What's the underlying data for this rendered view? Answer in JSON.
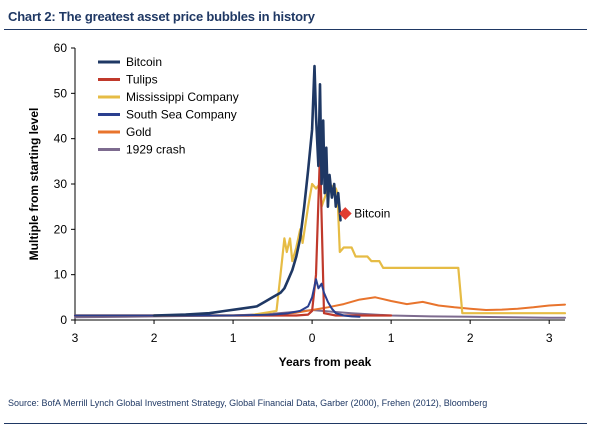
{
  "title": "Chart 2: The greatest asset price bubbles in history",
  "source": "Source:  BofA Merrill Lynch Global Investment Strategy, Global Financial Data, Garber (2000), Frehen (2012),  Bloomberg",
  "chart_data": {
    "type": "line",
    "xlabel": "Years from peak",
    "ylabel": "Multiple from starting level",
    "xlim": [
      -3,
      3.2
    ],
    "ylim": [
      0,
      60
    ],
    "xticks": [
      -3,
      -2,
      -1,
      0,
      1,
      2,
      3
    ],
    "xtick_labels": [
      "3",
      "2",
      "1",
      "0",
      "1",
      "2",
      "3"
    ],
    "yticks": [
      0,
      10,
      20,
      30,
      40,
      50,
      60
    ],
    "ytick_labels": [
      "0",
      "10",
      "20",
      "30",
      "40",
      "50",
      "60"
    ],
    "legend_position": "top-left",
    "annotation": {
      "text": "Bitcoin",
      "x": 0.42,
      "y": 23.5,
      "color": "#e03c31"
    },
    "series": [
      {
        "name": "Bitcoin",
        "color": "#1f3864",
        "width": 2.6,
        "x": [
          -2.0,
          -1.6,
          -1.3,
          -1.1,
          -0.9,
          -0.7,
          -0.6,
          -0.5,
          -0.4,
          -0.35,
          -0.3,
          -0.25,
          -0.2,
          -0.15,
          -0.1,
          -0.05,
          0.0,
          0.03,
          0.05,
          0.08,
          0.1,
          0.12,
          0.14,
          0.16,
          0.18,
          0.2,
          0.22,
          0.25,
          0.28,
          0.3,
          0.33,
          0.36
        ],
        "y": [
          1,
          1.2,
          1.5,
          2,
          2.5,
          3,
          4,
          5,
          6,
          7,
          9,
          11,
          14,
          18,
          25,
          33,
          42,
          56,
          45,
          34,
          52,
          30,
          44,
          28,
          38,
          25,
          32,
          27,
          30,
          25,
          28,
          22
        ]
      },
      {
        "name": "Tulips",
        "color": "#c0392b",
        "width": 2.2,
        "x": [
          -3.0,
          -1.0,
          -0.5,
          -0.2,
          -0.05,
          0.0,
          0.05,
          0.1,
          0.15,
          0.3,
          1.0
        ],
        "y": [
          1,
          1,
          1,
          1,
          1.2,
          2,
          10,
          37,
          1.5,
          1,
          1
        ]
      },
      {
        "name": "Mississippi Company",
        "color": "#e6bc45",
        "width": 2.2,
        "x": [
          -3.0,
          -0.8,
          -0.45,
          -0.4,
          -0.35,
          -0.32,
          -0.28,
          -0.25,
          -0.2,
          -0.15,
          -0.12,
          -0.05,
          0.0,
          0.05,
          0.1,
          0.12,
          0.18,
          0.2,
          0.3,
          0.32,
          0.35,
          0.4,
          0.5,
          0.55,
          0.7,
          0.75,
          0.85,
          0.9,
          1.85,
          1.9,
          2.2,
          3.2
        ],
        "y": [
          1,
          1,
          2,
          10,
          18,
          15,
          18,
          13,
          16,
          20,
          17,
          25,
          30,
          29,
          30,
          25,
          28,
          30,
          29,
          28,
          15,
          16,
          16,
          14,
          14,
          13,
          13,
          11.5,
          11.5,
          1.5,
          1.5,
          1.5
        ]
      },
      {
        "name": "South Sea Company",
        "color": "#2a3f8f",
        "width": 2.0,
        "x": [
          -3.0,
          -1.0,
          -0.5,
          -0.3,
          -0.15,
          -0.05,
          0.0,
          0.05,
          0.08,
          0.12,
          0.15,
          0.2,
          0.25,
          0.3,
          0.4,
          0.5,
          0.6
        ],
        "y": [
          1,
          1,
          1.2,
          1.5,
          2,
          3,
          5,
          9,
          7,
          8,
          6,
          4,
          2.5,
          1.5,
          1,
          0.8,
          0.7
        ]
      },
      {
        "name": "Gold",
        "color": "#e8742d",
        "width": 2.0,
        "x": [
          -3.0,
          -2.0,
          -1.0,
          -0.5,
          -0.2,
          0.0,
          0.2,
          0.4,
          0.6,
          0.8,
          1.0,
          1.2,
          1.4,
          1.6,
          1.8,
          2.0,
          2.2,
          2.4,
          2.6,
          2.8,
          3.0,
          3.2
        ],
        "y": [
          1,
          1,
          1,
          1.2,
          1.6,
          2.2,
          2.8,
          3.5,
          4.5,
          5,
          4.2,
          3.5,
          4,
          3.2,
          2.8,
          2.5,
          2.2,
          2.3,
          2.5,
          2.8,
          3.2,
          3.4
        ]
      },
      {
        "name": "1929 crash",
        "color": "#7d6b8f",
        "width": 2.0,
        "x": [
          -3.0,
          -2.0,
          -1.0,
          -0.5,
          -0.2,
          0.0,
          0.2,
          0.5,
          0.8,
          1.0,
          1.5,
          2.0,
          2.5,
          3.0,
          3.2
        ],
        "y": [
          0.6,
          0.8,
          1.0,
          1.4,
          1.8,
          2.2,
          1.9,
          1.5,
          1.2,
          1.0,
          0.8,
          0.7,
          0.6,
          0.5,
          0.5
        ]
      }
    ]
  }
}
